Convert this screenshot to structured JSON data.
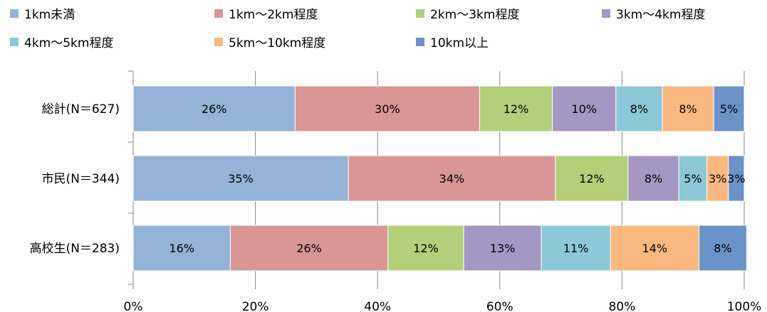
{
  "chart_data": {
    "type": "bar",
    "orientation": "horizontal",
    "stacked": true,
    "percent": true,
    "categories": [
      "総計(N＝627)",
      "市民(N＝344)",
      "高校生(N＝283)"
    ],
    "series": [
      {
        "name": "1km未満",
        "color": "#95b3d7",
        "values": [
          26.5,
          35.2,
          15.9
        ],
        "labels": [
          "26%",
          "35%",
          "16%"
        ]
      },
      {
        "name": "1km～2km程度",
        "color": "#d99694",
        "values": [
          30.2,
          33.9,
          25.8
        ],
        "labels": [
          "30%",
          "34%",
          "26%"
        ]
      },
      {
        "name": "2km～3km程度",
        "color": "#b3cf7a",
        "values": [
          11.9,
          11.9,
          12.4
        ],
        "labels": [
          "12%",
          "12%",
          "12%"
        ]
      },
      {
        "name": "3km～4km程度",
        "color": "#a696c4",
        "values": [
          10.4,
          8.3,
          12.7
        ],
        "labels": [
          "10%",
          "8%",
          "13%"
        ]
      },
      {
        "name": "4km～5km程度",
        "color": "#8cc8d8",
        "values": [
          7.6,
          4.6,
          11.3
        ],
        "labels": [
          "8%",
          "5%",
          "11%"
        ]
      },
      {
        "name": "5km～10km程度",
        "color": "#f9b880",
        "values": [
          8.4,
          3.5,
          14.5
        ],
        "labels": [
          "8%",
          "3%",
          "14%"
        ]
      },
      {
        "name": "10km以上",
        "color": "#6b93c8",
        "values": [
          5.0,
          2.6,
          7.8
        ],
        "labels": [
          "5%",
          "3%",
          "8%"
        ]
      }
    ],
    "xlim": [
      0,
      100
    ],
    "x_ticks": [
      "0%",
      "20%",
      "40%",
      "60%",
      "80%",
      "100%"
    ],
    "grid": true,
    "legend_position": "top"
  }
}
